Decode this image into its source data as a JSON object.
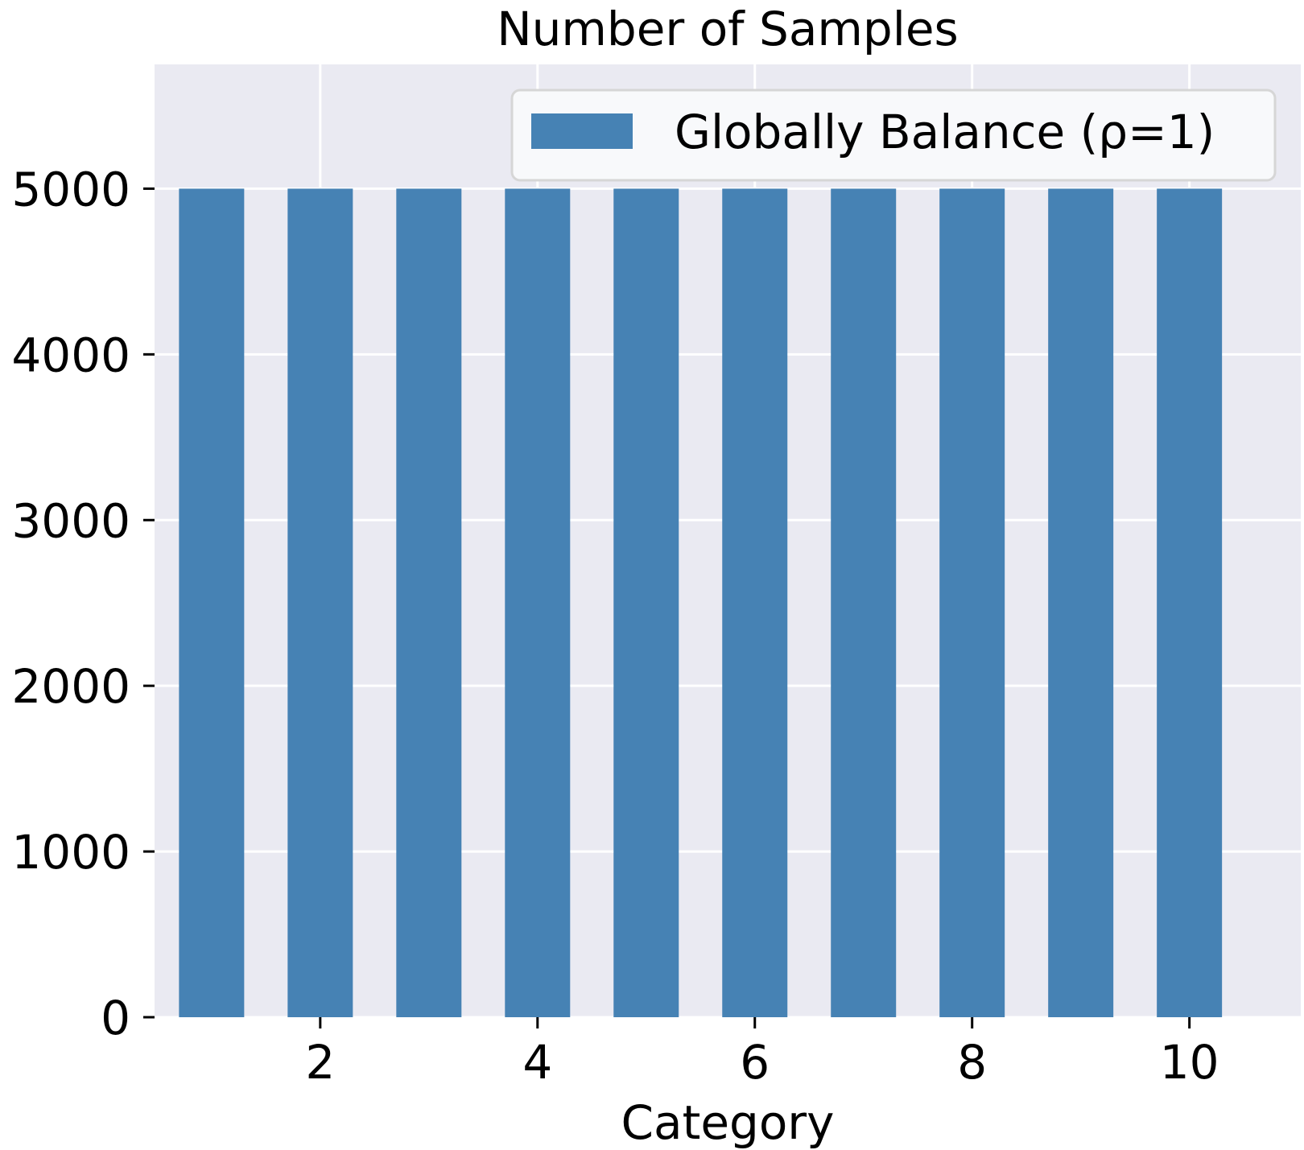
{
  "chart_data": {
    "type": "bar",
    "title": "Number of Samples",
    "xlabel": "Category",
    "ylabel": "",
    "categories": [
      1,
      2,
      3,
      4,
      5,
      6,
      7,
      8,
      9,
      10
    ],
    "series": [
      {
        "name": "Globally Balance (ρ=1)",
        "values": [
          5000,
          5000,
          5000,
          5000,
          5000,
          5000,
          5000,
          5000,
          5000,
          5000
        ]
      }
    ],
    "xlim": [
      0.475,
      11.025
    ],
    "ylim": [
      0,
      5750
    ],
    "xticks": [
      2,
      4,
      6,
      8,
      10
    ],
    "xtick_labels": [
      "2",
      "4",
      "6",
      "8",
      "10"
    ],
    "yticks": [
      0,
      1000,
      2000,
      3000,
      4000,
      5000
    ],
    "ytick_labels": [
      "0",
      "1000",
      "2000",
      "3000",
      "4000",
      "5000"
    ],
    "bar_width": 0.6,
    "grid": true,
    "legend_position": "top-right",
    "colors": {
      "bar": "#4682b4",
      "plot_background": "#eaeaf2",
      "grid": "#ffffff",
      "legend_background": "#f8f9fb",
      "legend_border": "#d6d6d6"
    }
  }
}
